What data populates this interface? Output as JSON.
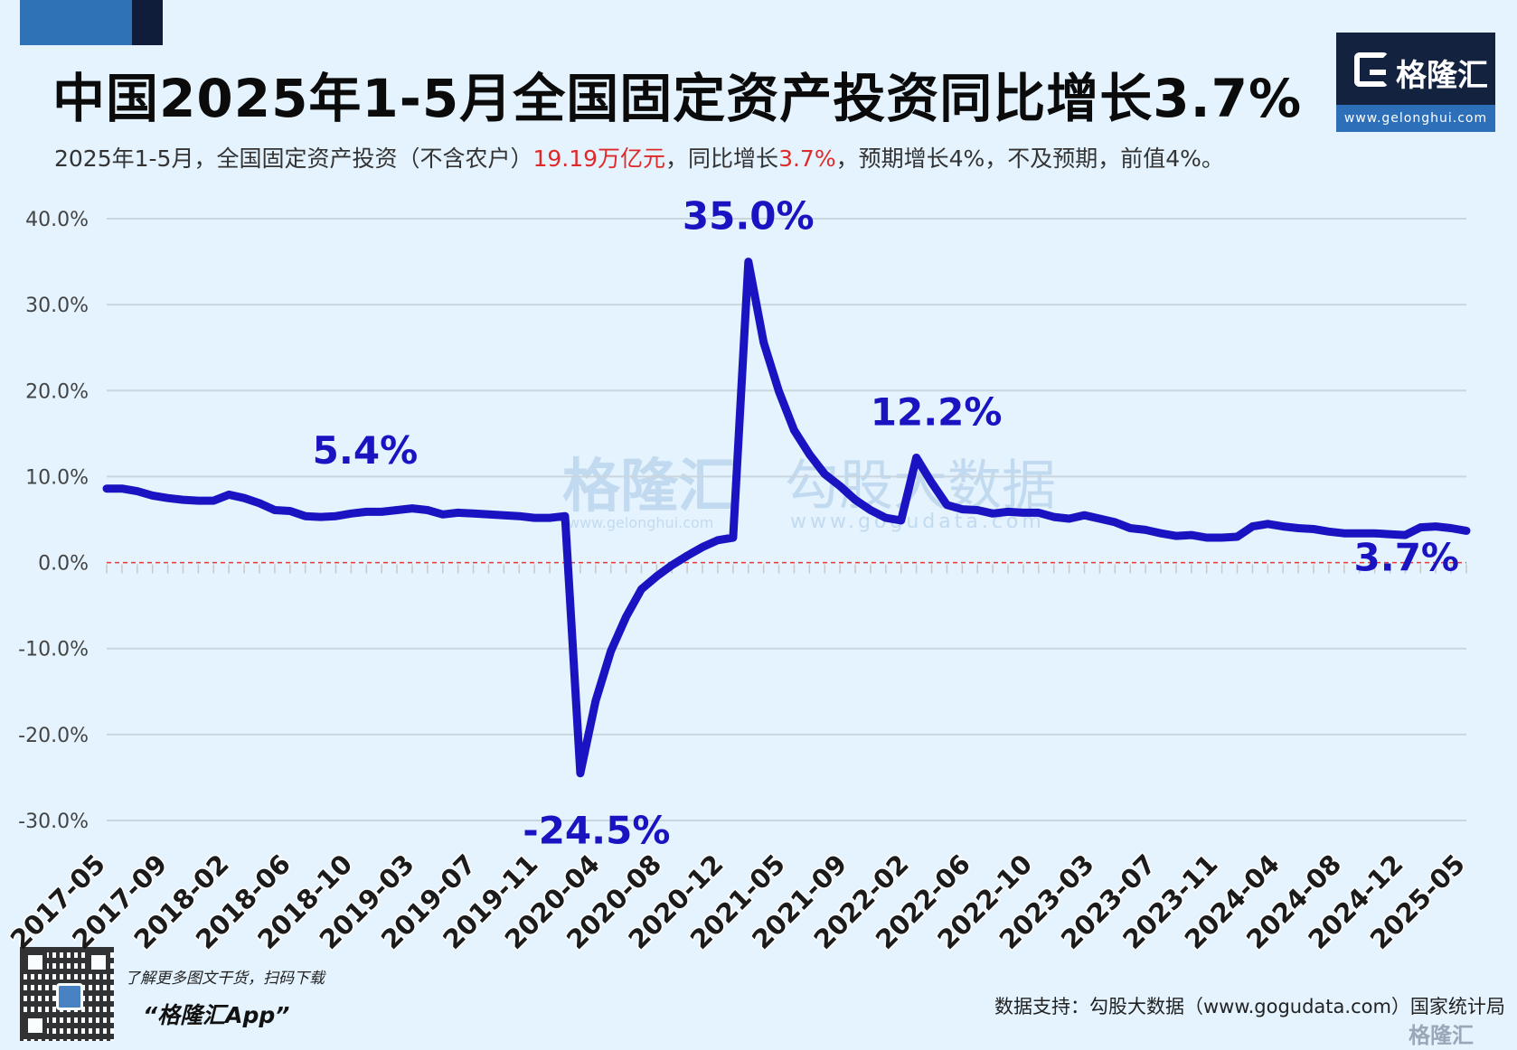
{
  "title": "中国2025年1-5月全国固定资产投资同比增长3.7%",
  "subtitle": {
    "part1": "2025年1-5月，全国固定资产投资（不含农户）",
    "value": "19.19万亿元",
    "part2": "，同比增长",
    "growth": "3.7%",
    "part3": "，预期增长4%，不及预期，前值4%。"
  },
  "logo": {
    "name": "格隆汇",
    "url": "www.gelonghui.com"
  },
  "watermark": {
    "brand1": "格隆汇",
    "url1": "www.gelonghui.com",
    "brand2": "勾股大数据",
    "url2": "www.gogudata.com"
  },
  "footer": {
    "promo_line1": "了解更多图文干货，扫码下载",
    "promo_line2": "“格隆汇App”",
    "source": "数据支持：勾股大数据（www.gogudata.com）国家统计局",
    "corner_logo": "格隆汇"
  },
  "colors": {
    "line": "#1a13c2",
    "zero_line": "#e53935",
    "grid": "#c9d6e0",
    "annotation": "#1a13c2"
  },
  "chart_data": {
    "type": "line",
    "ylim": [
      -30,
      40
    ],
    "yticks": [
      40,
      30,
      20,
      10,
      0,
      -10,
      -20,
      -30
    ],
    "ytick_labels": [
      "40.0%",
      "30.0%",
      "20.0%",
      "10.0%",
      "0.0%",
      "-10.0%",
      "-20.0%",
      "-30.0%"
    ],
    "xtick_labels": [
      "2017-05",
      "2017-09",
      "2018-02",
      "2018-06",
      "2018-10",
      "2019-03",
      "2019-07",
      "2019-11",
      "2020-04",
      "2020-08",
      "2020-12",
      "2021-05",
      "2021-09",
      "2022-02",
      "2022-06",
      "2022-10",
      "2023-03",
      "2023-07",
      "2023-11",
      "2024-04",
      "2024-08",
      "2024-12",
      "2025-05"
    ],
    "zero_line": "dashed red",
    "grid": "horizontal",
    "series": [
      {
        "values": [
          8.6,
          8.6,
          8.3,
          7.8,
          7.5,
          7.3,
          7.2,
          7.2,
          7.9,
          7.5,
          6.9,
          6.1,
          6.0,
          5.4,
          5.3,
          5.4,
          5.7,
          5.9,
          5.9,
          6.1,
          6.3,
          6.1,
          5.6,
          5.8,
          5.7,
          5.6,
          5.5,
          5.4,
          5.2,
          5.2,
          5.4,
          -24.5,
          -16.1,
          -10.3,
          -6.3,
          -3.1,
          -1.6,
          -0.3,
          0.8,
          1.8,
          2.6,
          2.9,
          35.0,
          25.6,
          19.9,
          15.4,
          12.6,
          10.3,
          8.9,
          7.3,
          6.1,
          5.2,
          4.9,
          12.2,
          9.3,
          6.7,
          6.2,
          6.1,
          5.7,
          5.9,
          5.8,
          5.8,
          5.3,
          5.1,
          5.5,
          5.1,
          4.7,
          4.0,
          3.8,
          3.4,
          3.1,
          3.2,
          2.9,
          2.9,
          3.0,
          4.2,
          4.5,
          4.2,
          4.0,
          3.9,
          3.6,
          3.4,
          3.4,
          3.4,
          3.3,
          3.2,
          4.1,
          4.2,
          4.0,
          3.7
        ]
      }
    ],
    "annotations": [
      {
        "label": "5.4%",
        "value": 5.4
      },
      {
        "label": "-24.5%",
        "value": -24.5
      },
      {
        "label": "35.0%",
        "value": 35.0
      },
      {
        "label": "12.2%",
        "value": 12.2
      },
      {
        "label": "3.7%",
        "value": 3.7
      }
    ]
  }
}
